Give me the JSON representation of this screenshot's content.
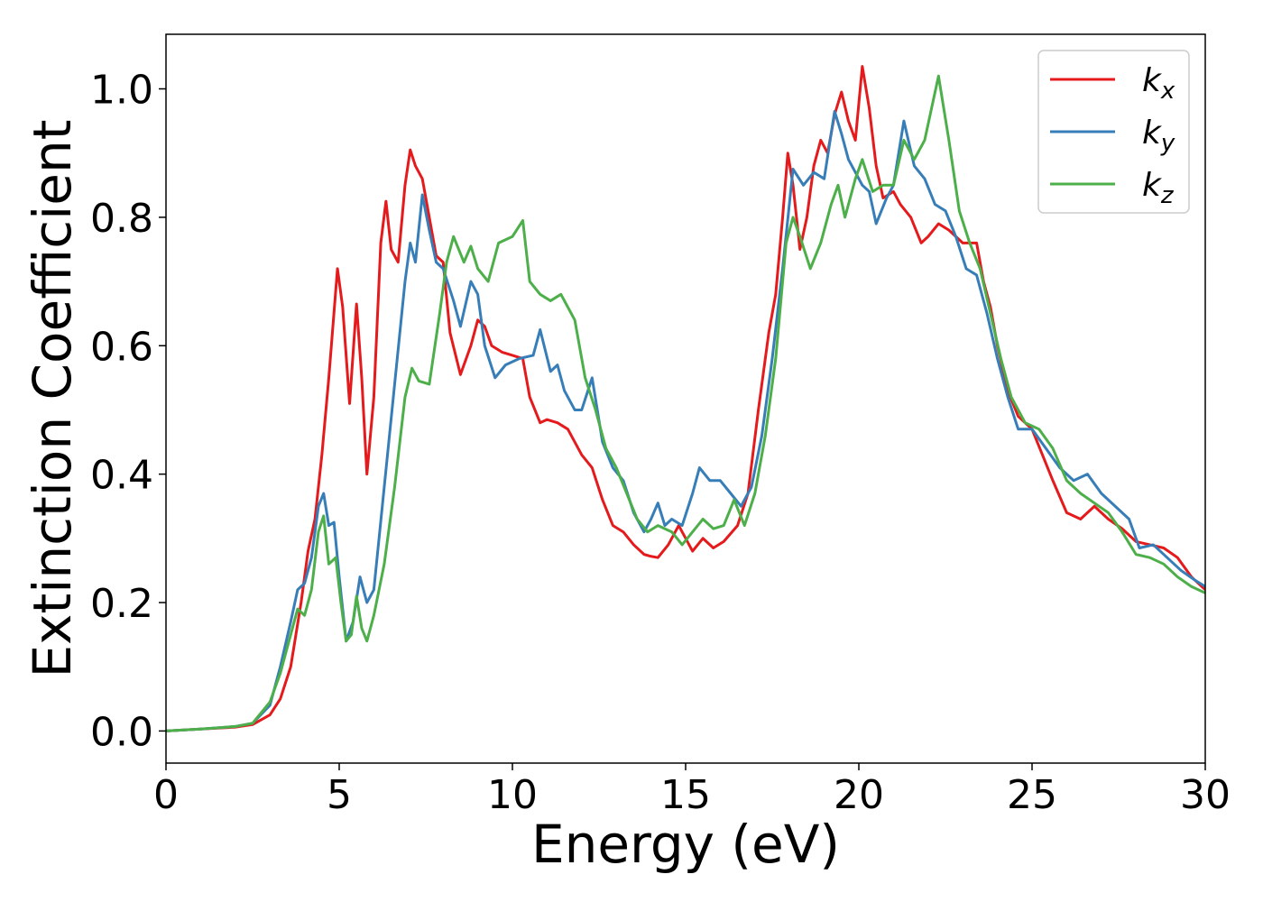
{
  "chart_data": {
    "type": "line",
    "title": "",
    "xlabel": "Energy (eV)",
    "ylabel": "Extinction Coefficient",
    "xlim": [
      0,
      30
    ],
    "ylim": [
      -0.05,
      1.085
    ],
    "xticks": [
      0,
      5,
      10,
      15,
      20,
      25,
      30
    ],
    "xtick_labels": [
      "0",
      "5",
      "10",
      "15",
      "20",
      "25",
      "30"
    ],
    "yticks": [
      0.0,
      0.2,
      0.4,
      0.6,
      0.8,
      1.0
    ],
    "ytick_labels": [
      "0.0",
      "0.2",
      "0.4",
      "0.6",
      "0.8",
      "1.0"
    ],
    "grid": false,
    "legend_position": "top-right",
    "series": [
      {
        "name": "kx",
        "legend_base": "k",
        "legend_sub": "x",
        "color": "#e41a1c",
        "points": [
          [
            0,
            0
          ],
          [
            1,
            0.003
          ],
          [
            2,
            0.006
          ],
          [
            2.5,
            0.01
          ],
          [
            3,
            0.025
          ],
          [
            3.3,
            0.05
          ],
          [
            3.6,
            0.1
          ],
          [
            3.9,
            0.2
          ],
          [
            4.1,
            0.28
          ],
          [
            4.3,
            0.33
          ],
          [
            4.5,
            0.43
          ],
          [
            4.7,
            0.55
          ],
          [
            4.95,
            0.72
          ],
          [
            5.1,
            0.66
          ],
          [
            5.3,
            0.51
          ],
          [
            5.5,
            0.665
          ],
          [
            5.65,
            0.55
          ],
          [
            5.8,
            0.4
          ],
          [
            6.0,
            0.52
          ],
          [
            6.2,
            0.76
          ],
          [
            6.35,
            0.825
          ],
          [
            6.5,
            0.75
          ],
          [
            6.7,
            0.73
          ],
          [
            6.9,
            0.85
          ],
          [
            7.05,
            0.905
          ],
          [
            7.2,
            0.88
          ],
          [
            7.4,
            0.86
          ],
          [
            7.6,
            0.8
          ],
          [
            7.8,
            0.74
          ],
          [
            8.0,
            0.73
          ],
          [
            8.2,
            0.62
          ],
          [
            8.5,
            0.555
          ],
          [
            8.8,
            0.6
          ],
          [
            9.0,
            0.64
          ],
          [
            9.2,
            0.63
          ],
          [
            9.4,
            0.6
          ],
          [
            9.7,
            0.59
          ],
          [
            10.0,
            0.585
          ],
          [
            10.3,
            0.58
          ],
          [
            10.5,
            0.52
          ],
          [
            10.8,
            0.48
          ],
          [
            11.0,
            0.485
          ],
          [
            11.3,
            0.48
          ],
          [
            11.6,
            0.47
          ],
          [
            12.0,
            0.43
          ],
          [
            12.3,
            0.41
          ],
          [
            12.6,
            0.36
          ],
          [
            12.9,
            0.32
          ],
          [
            13.2,
            0.31
          ],
          [
            13.5,
            0.29
          ],
          [
            13.8,
            0.275
          ],
          [
            14.0,
            0.272
          ],
          [
            14.2,
            0.27
          ],
          [
            14.5,
            0.29
          ],
          [
            14.8,
            0.32
          ],
          [
            15.0,
            0.3
          ],
          [
            15.2,
            0.28
          ],
          [
            15.5,
            0.3
          ],
          [
            15.8,
            0.285
          ],
          [
            16.1,
            0.295
          ],
          [
            16.5,
            0.32
          ],
          [
            16.8,
            0.37
          ],
          [
            17.1,
            0.5
          ],
          [
            17.4,
            0.62
          ],
          [
            17.6,
            0.68
          ],
          [
            17.8,
            0.8
          ],
          [
            17.95,
            0.9
          ],
          [
            18.1,
            0.85
          ],
          [
            18.3,
            0.75
          ],
          [
            18.5,
            0.8
          ],
          [
            18.7,
            0.88
          ],
          [
            18.9,
            0.92
          ],
          [
            19.1,
            0.9
          ],
          [
            19.3,
            0.96
          ],
          [
            19.5,
            0.995
          ],
          [
            19.7,
            0.95
          ],
          [
            19.9,
            0.92
          ],
          [
            20.1,
            1.035
          ],
          [
            20.3,
            0.97
          ],
          [
            20.5,
            0.88
          ],
          [
            20.7,
            0.83
          ],
          [
            21.0,
            0.84
          ],
          [
            21.2,
            0.82
          ],
          [
            21.5,
            0.8
          ],
          [
            21.8,
            0.76
          ],
          [
            22.0,
            0.77
          ],
          [
            22.3,
            0.79
          ],
          [
            22.6,
            0.78
          ],
          [
            23.0,
            0.76
          ],
          [
            23.4,
            0.76
          ],
          [
            23.6,
            0.7
          ],
          [
            23.8,
            0.66
          ],
          [
            24.0,
            0.6
          ],
          [
            24.3,
            0.53
          ],
          [
            24.6,
            0.49
          ],
          [
            25.0,
            0.47
          ],
          [
            25.3,
            0.43
          ],
          [
            25.6,
            0.39
          ],
          [
            26.0,
            0.34
          ],
          [
            26.4,
            0.33
          ],
          [
            26.8,
            0.35
          ],
          [
            27.2,
            0.33
          ],
          [
            27.6,
            0.315
          ],
          [
            28.0,
            0.295
          ],
          [
            28.4,
            0.29
          ],
          [
            28.8,
            0.285
          ],
          [
            29.2,
            0.27
          ],
          [
            29.6,
            0.24
          ],
          [
            30.0,
            0.22
          ]
        ]
      },
      {
        "name": "ky",
        "legend_base": "k",
        "legend_sub": "y",
        "color": "#377eb8",
        "points": [
          [
            0,
            0
          ],
          [
            1,
            0.003
          ],
          [
            2,
            0.007
          ],
          [
            2.5,
            0.012
          ],
          [
            3,
            0.04
          ],
          [
            3.3,
            0.1
          ],
          [
            3.6,
            0.17
          ],
          [
            3.8,
            0.22
          ],
          [
            4.0,
            0.23
          ],
          [
            4.2,
            0.27
          ],
          [
            4.4,
            0.35
          ],
          [
            4.55,
            0.37
          ],
          [
            4.7,
            0.32
          ],
          [
            4.85,
            0.325
          ],
          [
            5.0,
            0.24
          ],
          [
            5.2,
            0.14
          ],
          [
            5.4,
            0.17
          ],
          [
            5.6,
            0.24
          ],
          [
            5.8,
            0.2
          ],
          [
            6.0,
            0.22
          ],
          [
            6.3,
            0.38
          ],
          [
            6.6,
            0.54
          ],
          [
            6.9,
            0.7
          ],
          [
            7.05,
            0.76
          ],
          [
            7.2,
            0.73
          ],
          [
            7.4,
            0.835
          ],
          [
            7.6,
            0.78
          ],
          [
            7.8,
            0.73
          ],
          [
            8.0,
            0.72
          ],
          [
            8.3,
            0.67
          ],
          [
            8.5,
            0.63
          ],
          [
            8.8,
            0.7
          ],
          [
            9.0,
            0.68
          ],
          [
            9.2,
            0.6
          ],
          [
            9.5,
            0.55
          ],
          [
            9.8,
            0.57
          ],
          [
            10.2,
            0.58
          ],
          [
            10.6,
            0.585
          ],
          [
            10.8,
            0.625
          ],
          [
            11.1,
            0.56
          ],
          [
            11.3,
            0.57
          ],
          [
            11.5,
            0.53
          ],
          [
            11.8,
            0.5
          ],
          [
            12.0,
            0.5
          ],
          [
            12.3,
            0.55
          ],
          [
            12.6,
            0.45
          ],
          [
            12.9,
            0.41
          ],
          [
            13.2,
            0.39
          ],
          [
            13.5,
            0.34
          ],
          [
            13.8,
            0.31
          ],
          [
            14.0,
            0.33
          ],
          [
            14.2,
            0.355
          ],
          [
            14.4,
            0.32
          ],
          [
            14.6,
            0.33
          ],
          [
            14.9,
            0.32
          ],
          [
            15.2,
            0.37
          ],
          [
            15.4,
            0.41
          ],
          [
            15.7,
            0.39
          ],
          [
            16.0,
            0.39
          ],
          [
            16.3,
            0.37
          ],
          [
            16.6,
            0.35
          ],
          [
            16.9,
            0.38
          ],
          [
            17.2,
            0.46
          ],
          [
            17.5,
            0.58
          ],
          [
            17.8,
            0.72
          ],
          [
            18.1,
            0.875
          ],
          [
            18.4,
            0.85
          ],
          [
            18.7,
            0.87
          ],
          [
            19.0,
            0.86
          ],
          [
            19.3,
            0.965
          ],
          [
            19.5,
            0.93
          ],
          [
            19.7,
            0.89
          ],
          [
            19.9,
            0.87
          ],
          [
            20.1,
            0.85
          ],
          [
            20.3,
            0.84
          ],
          [
            20.5,
            0.79
          ],
          [
            20.8,
            0.83
          ],
          [
            21.0,
            0.85
          ],
          [
            21.3,
            0.95
          ],
          [
            21.6,
            0.88
          ],
          [
            21.9,
            0.86
          ],
          [
            22.2,
            0.82
          ],
          [
            22.5,
            0.81
          ],
          [
            22.8,
            0.77
          ],
          [
            23.1,
            0.72
          ],
          [
            23.4,
            0.71
          ],
          [
            23.7,
            0.65
          ],
          [
            24.0,
            0.58
          ],
          [
            24.3,
            0.52
          ],
          [
            24.6,
            0.47
          ],
          [
            25.0,
            0.47
          ],
          [
            25.4,
            0.44
          ],
          [
            25.8,
            0.41
          ],
          [
            26.2,
            0.39
          ],
          [
            26.6,
            0.4
          ],
          [
            27.0,
            0.37
          ],
          [
            27.4,
            0.35
          ],
          [
            27.8,
            0.33
          ],
          [
            28.1,
            0.285
          ],
          [
            28.5,
            0.29
          ],
          [
            28.9,
            0.27
          ],
          [
            29.3,
            0.25
          ],
          [
            29.7,
            0.235
          ],
          [
            30.0,
            0.225
          ]
        ]
      },
      {
        "name": "kz",
        "legend_base": "k",
        "legend_sub": "z",
        "color": "#4daf4a",
        "points": [
          [
            0,
            0
          ],
          [
            1,
            0.003
          ],
          [
            2,
            0.007
          ],
          [
            2.5,
            0.012
          ],
          [
            3,
            0.045
          ],
          [
            3.3,
            0.09
          ],
          [
            3.6,
            0.15
          ],
          [
            3.8,
            0.19
          ],
          [
            4.0,
            0.18
          ],
          [
            4.2,
            0.22
          ],
          [
            4.4,
            0.31
          ],
          [
            4.55,
            0.335
          ],
          [
            4.7,
            0.26
          ],
          [
            4.9,
            0.27
          ],
          [
            5.05,
            0.2
          ],
          [
            5.2,
            0.14
          ],
          [
            5.35,
            0.15
          ],
          [
            5.5,
            0.21
          ],
          [
            5.65,
            0.16
          ],
          [
            5.8,
            0.14
          ],
          [
            6.0,
            0.18
          ],
          [
            6.3,
            0.26
          ],
          [
            6.6,
            0.38
          ],
          [
            6.9,
            0.52
          ],
          [
            7.1,
            0.565
          ],
          [
            7.3,
            0.545
          ],
          [
            7.6,
            0.54
          ],
          [
            7.9,
            0.65
          ],
          [
            8.1,
            0.73
          ],
          [
            8.3,
            0.77
          ],
          [
            8.6,
            0.73
          ],
          [
            8.8,
            0.755
          ],
          [
            9.0,
            0.72
          ],
          [
            9.3,
            0.7
          ],
          [
            9.6,
            0.76
          ],
          [
            10.0,
            0.77
          ],
          [
            10.3,
            0.795
          ],
          [
            10.5,
            0.7
          ],
          [
            10.8,
            0.68
          ],
          [
            11.1,
            0.67
          ],
          [
            11.4,
            0.68
          ],
          [
            11.8,
            0.64
          ],
          [
            12.1,
            0.55
          ],
          [
            12.4,
            0.5
          ],
          [
            12.7,
            0.44
          ],
          [
            13.0,
            0.41
          ],
          [
            13.3,
            0.37
          ],
          [
            13.6,
            0.33
          ],
          [
            13.9,
            0.31
          ],
          [
            14.2,
            0.32
          ],
          [
            14.6,
            0.31
          ],
          [
            14.9,
            0.29
          ],
          [
            15.2,
            0.31
          ],
          [
            15.5,
            0.33
          ],
          [
            15.8,
            0.315
          ],
          [
            16.1,
            0.32
          ],
          [
            16.4,
            0.36
          ],
          [
            16.7,
            0.32
          ],
          [
            17.0,
            0.37
          ],
          [
            17.3,
            0.46
          ],
          [
            17.6,
            0.58
          ],
          [
            17.9,
            0.76
          ],
          [
            18.1,
            0.8
          ],
          [
            18.3,
            0.77
          ],
          [
            18.6,
            0.72
          ],
          [
            18.9,
            0.76
          ],
          [
            19.2,
            0.82
          ],
          [
            19.4,
            0.85
          ],
          [
            19.6,
            0.8
          ],
          [
            19.9,
            0.86
          ],
          [
            20.1,
            0.89
          ],
          [
            20.4,
            0.84
          ],
          [
            20.7,
            0.85
          ],
          [
            21.0,
            0.85
          ],
          [
            21.3,
            0.92
          ],
          [
            21.6,
            0.89
          ],
          [
            21.9,
            0.92
          ],
          [
            22.3,
            1.02
          ],
          [
            22.6,
            0.92
          ],
          [
            22.9,
            0.81
          ],
          [
            23.2,
            0.76
          ],
          [
            23.5,
            0.72
          ],
          [
            23.8,
            0.65
          ],
          [
            24.1,
            0.58
          ],
          [
            24.4,
            0.52
          ],
          [
            24.8,
            0.48
          ],
          [
            25.2,
            0.47
          ],
          [
            25.6,
            0.44
          ],
          [
            26.0,
            0.39
          ],
          [
            26.4,
            0.37
          ],
          [
            26.8,
            0.355
          ],
          [
            27.2,
            0.34
          ],
          [
            27.6,
            0.31
          ],
          [
            28.0,
            0.275
          ],
          [
            28.4,
            0.27
          ],
          [
            28.8,
            0.26
          ],
          [
            29.2,
            0.24
          ],
          [
            29.6,
            0.225
          ],
          [
            30.0,
            0.215
          ]
        ]
      }
    ]
  }
}
